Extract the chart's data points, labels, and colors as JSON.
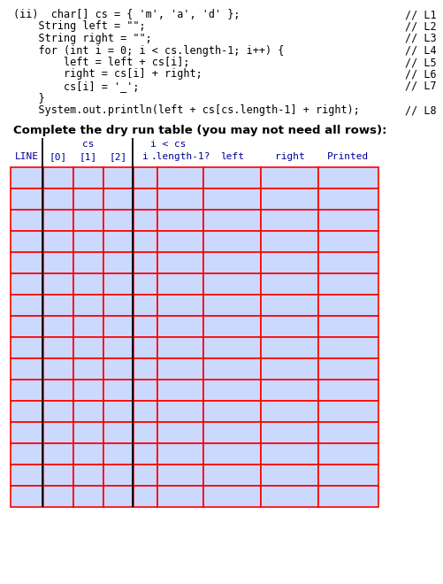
{
  "code_lines": [
    {
      "text": "(ii)  char[] cs = { 'm', 'a', 'd' };",
      "comment": "// L1"
    },
    {
      "text": "    String left = \"\";",
      "comment": "// L2"
    },
    {
      "text": "    String right = \"\";",
      "comment": "// L3"
    },
    {
      "text": "    for (int i = 0; i < cs.length-1; i++) {",
      "comment": "// L4"
    },
    {
      "text": "        left = left + cs[i];",
      "comment": "// L5"
    },
    {
      "text": "        right = cs[i] + right;",
      "comment": "// L6"
    },
    {
      "text": "        cs[i] = '_';",
      "comment": "// L7"
    },
    {
      "text": "    }",
      "comment": ""
    },
    {
      "text": "    System.out.println(left + cs[cs.length-1] + right);",
      "comment": "// L8"
    }
  ],
  "instruction": "Complete the dry run table (you may not need all rows):",
  "col_headers_row2": [
    "LINE",
    "[0]",
    "[1]",
    "[2]",
    "i",
    ".length-1?",
    "left",
    "right",
    "Printed"
  ],
  "num_rows": 16,
  "cell_fill": "#ccd9ff",
  "cell_border": "#ff0000",
  "header_text_color": "#000099",
  "background_color": "#ffffff",
  "instruction_fontsize": 9.5,
  "code_fontsize": 8.5,
  "table_fontsize": 8.0
}
